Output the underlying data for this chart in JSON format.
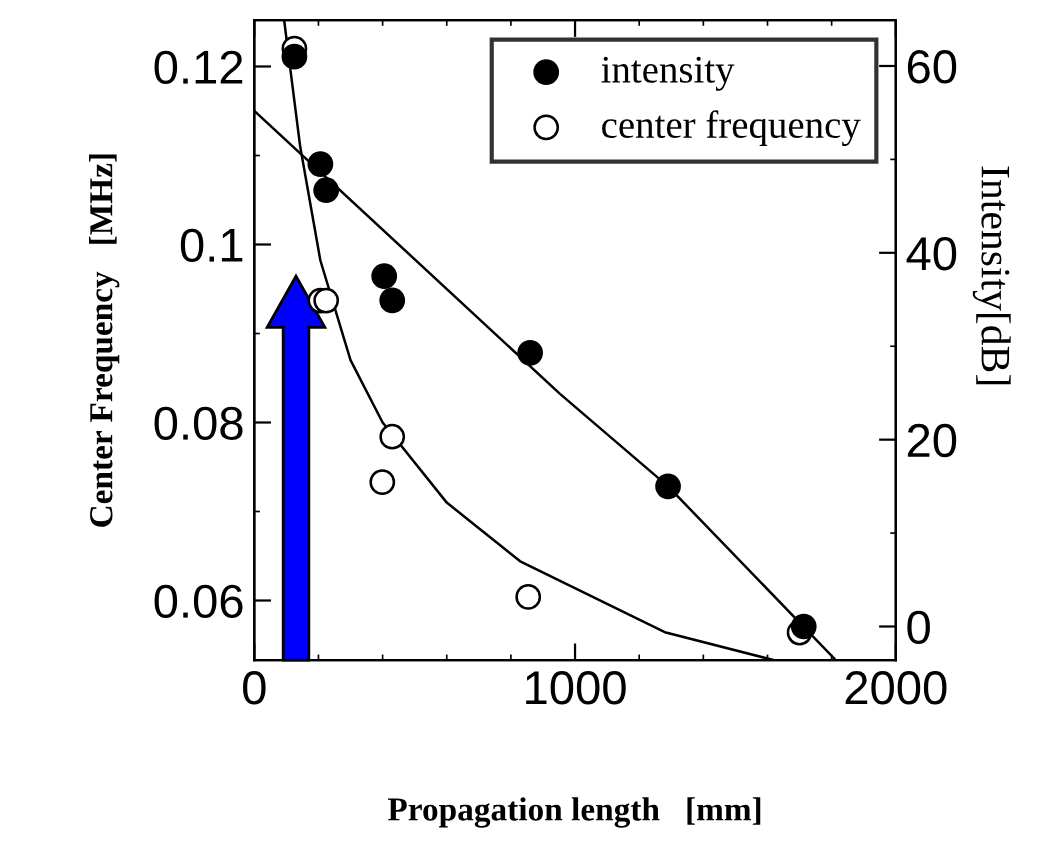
{
  "chart_data": {
    "type": "scatter",
    "xlabel": "Propagation length   [mm]",
    "ylabel": "Center Frequency   [MHz]",
    "y2label": "Intensity[dB]",
    "xlim": [
      0,
      2000
    ],
    "xticks": [
      0,
      1000,
      2000
    ],
    "ylim": [
      0.0533,
      0.1252
    ],
    "yticks": [
      0.06,
      0.08,
      0.1,
      0.12
    ],
    "y2lim": [
      -3.6,
      64.9
    ],
    "y2ticks": [
      0,
      20,
      40,
      60
    ],
    "legend": "top right",
    "grid": false,
    "series": [
      {
        "name": "intensity",
        "axis": "y2",
        "color": "#000000",
        "marker": "circle",
        "x": [
          125,
          206,
          224,
          405,
          430,
          860,
          1290,
          1713
        ],
        "values": [
          61,
          49.5,
          46.7,
          37.5,
          34.9,
          29.3,
          15,
          0
        ]
      },
      {
        "name": "center frequency",
        "axis": "y",
        "color": "#ffffff",
        "marker": "circle",
        "x": [
          125,
          206,
          224,
          430,
          399,
          854,
          1700
        ],
        "values": [
          0.122,
          0.0937,
          0.0937,
          0.0784,
          0.0733,
          0.0604,
          0.0564
        ]
      },
      {
        "type": "line",
        "axis": "y2",
        "color": "#000000",
        "x": [
          0,
          953,
          1290,
          1813
        ],
        "values": [
          55.2,
          24.9,
          15,
          -3.6
        ]
      },
      {
        "type": "line",
        "axis": "y",
        "color": "#000000",
        "x": [
          93,
          143,
          206,
          300,
          400,
          600,
          829,
          1283,
          1620
        ],
        "values": [
          0.1252,
          0.111,
          0.0982,
          0.087,
          0.08,
          0.071,
          0.0644,
          0.0564,
          0.0533
        ]
      }
    ]
  }
}
